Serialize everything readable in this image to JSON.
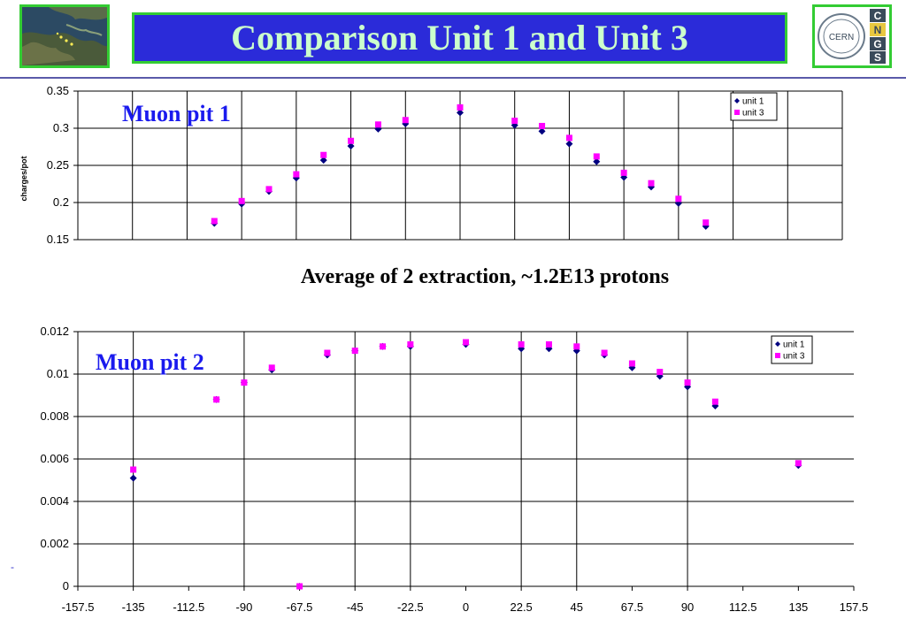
{
  "header": {
    "title": "Comparison Unit 1 and Unit 3",
    "left_logo_icon": "europe-satellite-map-icon",
    "right_logo_icon": "cern-cngs-logo-icon",
    "right_logo_text": {
      "cern": "CERN",
      "letters": [
        "C",
        "N",
        "G",
        "S"
      ]
    }
  },
  "subtitle": "Average of 2 extraction, ~1.2E13 protons",
  "footer_mark": "-",
  "chart_data": [
    {
      "type": "scatter",
      "label": "Muon pit 1",
      "ylabel": "charges/pot",
      "ylim": [
        0.15,
        0.35
      ],
      "yticks": [
        "0.35",
        "0.3",
        "0.25",
        "0.2",
        "0.15"
      ],
      "xlim": [
        -157.5,
        157.5
      ],
      "vertical_grid_x": [
        -157.5,
        -135,
        -112.5,
        -90,
        -67.5,
        -45,
        -22.5,
        0,
        22.5,
        45,
        67.5,
        90,
        112.5,
        135,
        157.5
      ],
      "grid": true,
      "legend": "top-right",
      "series": [
        {
          "name": "unit 1",
          "marker": "diamond",
          "color": "#000080",
          "x": [
            -101.25,
            -90,
            -78.75,
            -67.5,
            -56.25,
            -45,
            -33.75,
            -22.5,
            0,
            22.5,
            33.75,
            45,
            56.25,
            67.5,
            78.75,
            90,
            101.25
          ],
          "y": [
            0.172,
            0.198,
            0.215,
            0.233,
            0.257,
            0.276,
            0.299,
            0.306,
            0.321,
            0.304,
            0.296,
            0.279,
            0.255,
            0.234,
            0.221,
            0.199,
            0.168
          ]
        },
        {
          "name": "unit 3",
          "marker": "square",
          "color": "#ff00ff",
          "x": [
            -101.25,
            -90,
            -78.75,
            -67.5,
            -56.25,
            -45,
            -33.75,
            -22.5,
            0,
            22.5,
            33.75,
            45,
            56.25,
            67.5,
            78.75,
            90,
            101.25
          ],
          "y": [
            0.175,
            0.202,
            0.218,
            0.238,
            0.264,
            0.283,
            0.305,
            0.311,
            0.328,
            0.31,
            0.303,
            0.287,
            0.262,
            0.24,
            0.226,
            0.205,
            0.173
          ]
        }
      ]
    },
    {
      "type": "scatter",
      "label": "Muon pit 2",
      "ylabel": "",
      "ylim": [
        0,
        0.012
      ],
      "yticks": [
        "0.012",
        "0.01",
        "0.008",
        "0.006",
        "0.004",
        "0.002",
        "0"
      ],
      "xlim": [
        -157.5,
        157.5
      ],
      "xticks": [
        "-157.5",
        "-135",
        "-112.5",
        "-90",
        "-67.5",
        "-45",
        "-22.5",
        "0",
        "22.5",
        "45",
        "67.5",
        "90",
        "112.5",
        "135",
        "157.5"
      ],
      "vertical_grid_x": [
        -135,
        -90,
        -45,
        -22.5,
        22.5,
        45,
        90
      ],
      "grid": true,
      "legend": "top-right",
      "series": [
        {
          "name": "unit 1",
          "marker": "diamond",
          "color": "#000080",
          "x": [
            -135,
            -101.25,
            -90,
            -78.75,
            -67.5,
            -56.25,
            -45,
            -33.75,
            -22.5,
            0,
            22.5,
            33.75,
            45,
            56.25,
            67.5,
            78.75,
            90,
            101.25,
            135
          ],
          "y": [
            0.0051,
            0.0088,
            0.0096,
            0.0102,
            0.0,
            0.0109,
            0.0111,
            0.0113,
            0.0113,
            0.0114,
            0.0112,
            0.0112,
            0.0111,
            0.0109,
            0.0103,
            0.0099,
            0.0094,
            0.0085,
            0.0057
          ]
        },
        {
          "name": "unit 3",
          "marker": "square",
          "color": "#ff00ff",
          "x": [
            -135,
            -101.25,
            -90,
            -78.75,
            -67.5,
            -56.25,
            -45,
            -33.75,
            -22.5,
            0,
            22.5,
            33.75,
            45,
            56.25,
            67.5,
            78.75,
            90,
            101.25,
            135
          ],
          "y": [
            0.0055,
            0.0088,
            0.0096,
            0.0103,
            0.0,
            0.011,
            0.0111,
            0.0113,
            0.0114,
            0.0115,
            0.0114,
            0.0114,
            0.0113,
            0.011,
            0.0105,
            0.0101,
            0.0096,
            0.0087,
            0.0058
          ]
        }
      ]
    }
  ]
}
